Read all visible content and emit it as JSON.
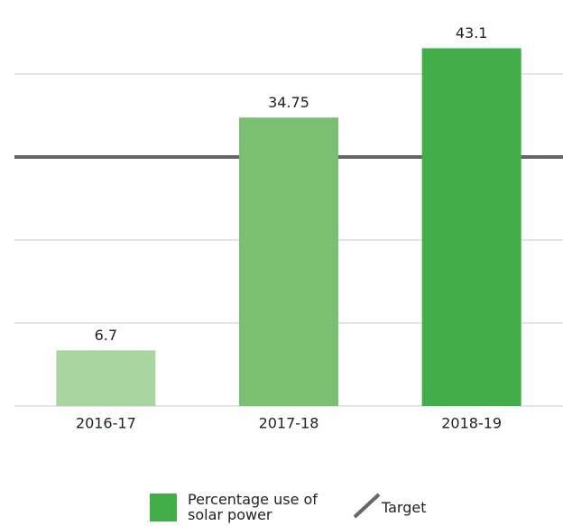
{
  "chart_data": {
    "type": "bar",
    "categories": [
      "2016-17",
      "2017-18",
      "2018-19"
    ],
    "series": [
      {
        "name": "Percentage use of solar power",
        "color": "#41ae4a",
        "values": [
          6.7,
          34.75,
          43.1
        ],
        "colors": [
          "#a8d5a0",
          "#7bbf72",
          "#41ae4a"
        ]
      }
    ],
    "target": {
      "name": "Target",
      "value": 30,
      "color": "#666666"
    },
    "ylim": [
      0,
      45
    ],
    "yticks": [
      0,
      10,
      20,
      30,
      40
    ],
    "grid": true
  }
}
